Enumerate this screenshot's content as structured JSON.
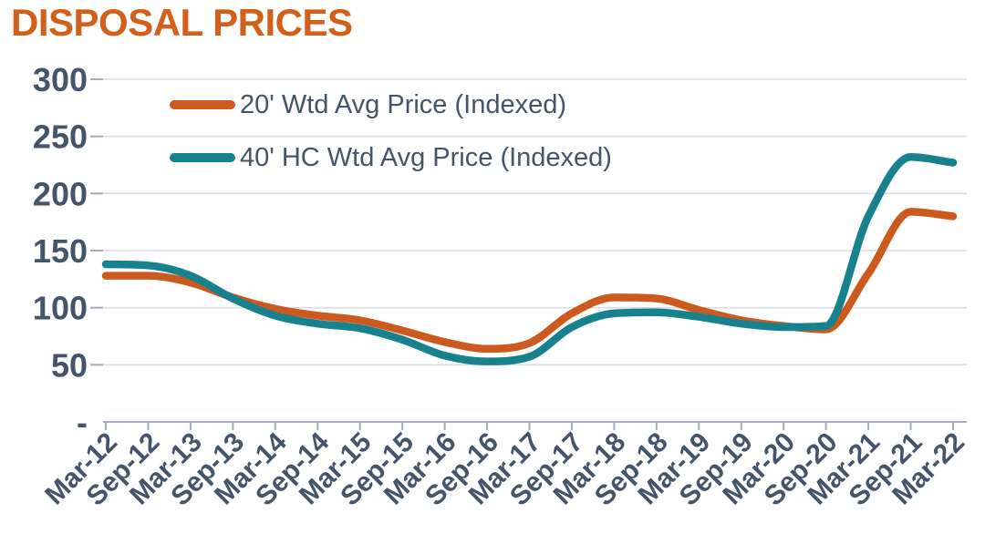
{
  "title": "DISPOSAL PRICES",
  "colors": {
    "title": "#D2601A",
    "axis_text": "#44546A",
    "gridline": "#D9DEE4",
    "axis_line": "#A3ADBB",
    "series_20ft": "#CC5A1E",
    "series_40ft": "#17818E"
  },
  "legend": {
    "items": [
      {
        "label": "20' Wtd Avg Price (Indexed)"
      },
      {
        "label": "40' HC Wtd Avg Price (Indexed)"
      }
    ]
  },
  "chart_data": {
    "type": "line",
    "title": "DISPOSAL PRICES",
    "categories": [
      "Mar-12",
      "Sep-12",
      "Mar-13",
      "Sep-13",
      "Mar-14",
      "Sep-14",
      "Mar-15",
      "Sep-15",
      "Mar-16",
      "Sep-16",
      "Mar-17",
      "Sep-17",
      "Mar-18",
      "Sep-18",
      "Mar-19",
      "Sep-19",
      "Mar-20",
      "Sep-20",
      "Mar-21",
      "Sep-21",
      "Mar-22"
    ],
    "series": [
      {
        "name": "20' Wtd Avg Price (Indexed)",
        "color": "#CC5A1E",
        "values": [
          128,
          128,
          122,
          109,
          99,
          93,
          89,
          80,
          70,
          64,
          69,
          95,
          109,
          108,
          98,
          89,
          84,
          81,
          130,
          184,
          180
        ]
      },
      {
        "name": "40' HC Wtd Avg Price (Indexed)",
        "color": "#17818E",
        "values": [
          138,
          137,
          128,
          108,
          93,
          86,
          82,
          72,
          58,
          53,
          57,
          83,
          95,
          96,
          92,
          86,
          83,
          84,
          180,
          232,
          227
        ]
      }
    ],
    "xlabel": "",
    "ylabel": "",
    "ylim": [
      0,
      300
    ],
    "yticks": [
      0,
      50,
      100,
      150,
      200,
      250,
      300
    ],
    "ytick_labels": [
      "-",
      "50",
      "100",
      "150",
      "200",
      "250",
      "300"
    ],
    "grid": "horizontal",
    "legend_position": "top-left-inside"
  }
}
